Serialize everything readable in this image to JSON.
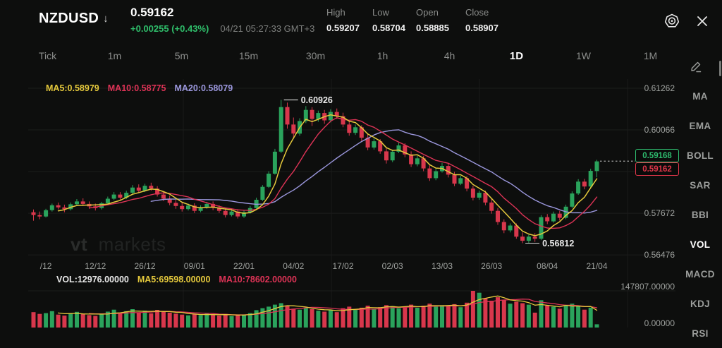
{
  "header": {
    "symbol": "NZDUSD",
    "symbol_arrow": "↓",
    "last_price": "0.59162",
    "change": "+0.00255 (+0.43%)",
    "timestamp": "04/21 05:27:33 GMT+3",
    "stats": [
      {
        "label": "High",
        "value": "0.59207"
      },
      {
        "label": "Low",
        "value": "0.58704"
      },
      {
        "label": "Open",
        "value": "0.58885"
      },
      {
        "label": "Close",
        "value": "0.58907"
      }
    ]
  },
  "icons": {
    "crosshair": "crosshair-target-icon",
    "close": "close-icon",
    "edit": "edit-pencil-icon"
  },
  "timeframes": {
    "items": [
      {
        "label": "Tick",
        "active": false
      },
      {
        "label": "1m",
        "active": false
      },
      {
        "label": "5m",
        "active": false
      },
      {
        "label": "15m",
        "active": false
      },
      {
        "label": "30m",
        "active": false
      },
      {
        "label": "1h",
        "active": false
      },
      {
        "label": "4h",
        "active": false
      },
      {
        "label": "1D",
        "active": true
      },
      {
        "label": "1W",
        "active": false
      },
      {
        "label": "1M",
        "active": false
      }
    ]
  },
  "price_legend": [
    {
      "label": "MA5:0.58979",
      "color": "#e5c93c"
    },
    {
      "label": "MA10:0.58775",
      "color": "#dd3356"
    },
    {
      "label": "MA20:0.58079",
      "color": "#9b97dd"
    }
  ],
  "volume_legend": [
    {
      "label": "VOL:12976.00000",
      "color": "#e9e9e9"
    },
    {
      "label": "MA5:69598.00000",
      "color": "#e5c93c"
    },
    {
      "label": "MA10:78602.00000",
      "color": "#dd3356"
    }
  ],
  "price_badges": {
    "upper": {
      "value": "0.59168",
      "color": "#2ebd6f"
    },
    "lower": {
      "value": "0.59162",
      "color": "#e0364a"
    }
  },
  "watermark": {
    "bold": "vt",
    "rest": "markets"
  },
  "sidebar": {
    "items": [
      {
        "label": "MA",
        "active": false
      },
      {
        "label": "EMA",
        "active": false
      },
      {
        "label": "BOLL",
        "active": false
      },
      {
        "label": "SAR",
        "active": false
      },
      {
        "label": "BBI",
        "active": false
      },
      {
        "label": "VOL",
        "active": true
      },
      {
        "label": "MACD",
        "active": false
      },
      {
        "label": "KDJ",
        "active": false
      },
      {
        "label": "RSI",
        "active": false
      }
    ]
  },
  "colors": {
    "up": "#2aa35c",
    "down": "#d8374c",
    "ma5": "#e5c93c",
    "ma10": "#dd3356",
    "ma20": "#9b97dd",
    "grid": "#1c1d1c",
    "grid_v": "#191a19",
    "axis_text": "#9da09d",
    "annotation": "#ececec",
    "dashed_line": "#9c9c9c"
  },
  "chart_data": {
    "type": "candlestick",
    "symbol": "NZDUSD",
    "interval": "1D",
    "x_axis": {
      "labels": [
        "/12",
        "12/12",
        "26/12",
        "09/01",
        "22/01",
        "04/02",
        "17/02",
        "02/03",
        "13/03",
        "26/03",
        "08/04",
        "21/04"
      ],
      "tick_indices": [
        2,
        10,
        18,
        26,
        34,
        42,
        50,
        58,
        66,
        74,
        83,
        91
      ]
    },
    "y_axis": {
      "labels": [
        {
          "value": 0.61262,
          "text": "0.61262"
        },
        {
          "value": 0.60066,
          "text": "0.60066"
        },
        {
          "value": 0.57672,
          "text": "0.57672"
        },
        {
          "value": 0.56476,
          "text": "0.56476"
        }
      ]
    },
    "volume_axis": {
      "labels": [
        {
          "value": 147807,
          "text": "147807.00000"
        },
        {
          "value": 0,
          "text": "0.00000"
        }
      ]
    },
    "annotations": [
      {
        "type": "high",
        "index": 40,
        "price": 0.60926,
        "text": "0.60926"
      },
      {
        "type": "low",
        "index": 79,
        "price": 0.56812,
        "text": "0.56812"
      }
    ],
    "current_price_line": {
      "price": 0.59168
    },
    "indicators": {
      "price_ma_periods": [
        5,
        10,
        20
      ],
      "volume_ma_periods": [
        5,
        10
      ]
    },
    "candles": [
      [
        0.577,
        0.5778,
        0.5746,
        0.5762
      ],
      [
        0.5762,
        0.5772,
        0.575,
        0.5758
      ],
      [
        0.5758,
        0.578,
        0.5755,
        0.5776
      ],
      [
        0.5776,
        0.5795,
        0.5772,
        0.579
      ],
      [
        0.579,
        0.5798,
        0.5778,
        0.5784
      ],
      [
        0.5784,
        0.5792,
        0.577,
        0.5779
      ],
      [
        0.5779,
        0.5798,
        0.5775,
        0.5793
      ],
      [
        0.5793,
        0.5808,
        0.5788,
        0.5801
      ],
      [
        0.5801,
        0.581,
        0.5788,
        0.5794
      ],
      [
        0.5794,
        0.5801,
        0.578,
        0.5787
      ],
      [
        0.5787,
        0.5795,
        0.5775,
        0.5782
      ],
      [
        0.5782,
        0.58,
        0.5778,
        0.5796
      ],
      [
        0.5796,
        0.5815,
        0.5792,
        0.5809
      ],
      [
        0.5809,
        0.5828,
        0.5805,
        0.5821
      ],
      [
        0.5821,
        0.5828,
        0.5806,
        0.5812
      ],
      [
        0.5812,
        0.5832,
        0.5808,
        0.5826
      ],
      [
        0.5826,
        0.5848,
        0.5822,
        0.5841
      ],
      [
        0.5841,
        0.585,
        0.5825,
        0.5832
      ],
      [
        0.5832,
        0.5852,
        0.5828,
        0.5846
      ],
      [
        0.5846,
        0.5855,
        0.5832,
        0.5838
      ],
      [
        0.5838,
        0.5845,
        0.5815,
        0.5821
      ],
      [
        0.5821,
        0.583,
        0.5802,
        0.5809
      ],
      [
        0.5809,
        0.5818,
        0.579,
        0.5797
      ],
      [
        0.5797,
        0.5806,
        0.578,
        0.5788
      ],
      [
        0.5788,
        0.58,
        0.5772,
        0.5779
      ],
      [
        0.5779,
        0.5795,
        0.5775,
        0.5789
      ],
      [
        0.5789,
        0.5796,
        0.5768,
        0.5774
      ],
      [
        0.5774,
        0.579,
        0.577,
        0.5784
      ],
      [
        0.5784,
        0.58,
        0.578,
        0.5794
      ],
      [
        0.5794,
        0.5801,
        0.5776,
        0.5783
      ],
      [
        0.5783,
        0.579,
        0.5768,
        0.5774
      ],
      [
        0.5774,
        0.5782,
        0.5755,
        0.5762
      ],
      [
        0.5762,
        0.5778,
        0.5758,
        0.5772
      ],
      [
        0.5772,
        0.5779,
        0.5752,
        0.5758
      ],
      [
        0.5758,
        0.5775,
        0.5754,
        0.577
      ],
      [
        0.577,
        0.5788,
        0.5766,
        0.5782
      ],
      [
        0.5782,
        0.5812,
        0.5778,
        0.5806
      ],
      [
        0.5806,
        0.5848,
        0.5802,
        0.5843
      ],
      [
        0.5843,
        0.5888,
        0.584,
        0.5881
      ],
      [
        0.5881,
        0.5952,
        0.5878,
        0.5944
      ],
      [
        0.5944,
        0.60926,
        0.594,
        0.6072
      ],
      [
        0.6072,
        0.6085,
        0.601,
        0.6022
      ],
      [
        0.6022,
        0.6042,
        0.5982,
        0.5996
      ],
      [
        0.5996,
        0.604,
        0.599,
        0.6032
      ],
      [
        0.6032,
        0.6075,
        0.6026,
        0.6064
      ],
      [
        0.6064,
        0.6072,
        0.6018,
        0.6038
      ],
      [
        0.6038,
        0.6062,
        0.603,
        0.6055
      ],
      [
        0.6055,
        0.6064,
        0.6024,
        0.6034
      ],
      [
        0.6034,
        0.6066,
        0.6028,
        0.6058
      ],
      [
        0.6058,
        0.6068,
        0.6038,
        0.6046
      ],
      [
        0.6046,
        0.6056,
        0.6014,
        0.6022
      ],
      [
        0.6022,
        0.6035,
        0.599,
        0.5998
      ],
      [
        0.5998,
        0.6022,
        0.5992,
        0.6014
      ],
      [
        0.6014,
        0.602,
        0.5975,
        0.5984
      ],
      [
        0.5984,
        0.5995,
        0.5948,
        0.5956
      ],
      [
        0.5956,
        0.5982,
        0.595,
        0.5974
      ],
      [
        0.5974,
        0.598,
        0.5938,
        0.5945
      ],
      [
        0.5945,
        0.5955,
        0.591,
        0.5919
      ],
      [
        0.5919,
        0.595,
        0.5914,
        0.5944
      ],
      [
        0.5944,
        0.597,
        0.594,
        0.5962
      ],
      [
        0.5962,
        0.5968,
        0.5928,
        0.5936
      ],
      [
        0.5936,
        0.5945,
        0.59,
        0.5908
      ],
      [
        0.5908,
        0.5932,
        0.5902,
        0.5925
      ],
      [
        0.5925,
        0.5932,
        0.5888,
        0.5896
      ],
      [
        0.5896,
        0.5905,
        0.586,
        0.5868
      ],
      [
        0.5868,
        0.5895,
        0.5862,
        0.5888
      ],
      [
        0.5888,
        0.5912,
        0.5884,
        0.5903
      ],
      [
        0.5903,
        0.591,
        0.587,
        0.5878
      ],
      [
        0.5878,
        0.5886,
        0.5845,
        0.5852
      ],
      [
        0.5852,
        0.5875,
        0.5848,
        0.5868
      ],
      [
        0.5868,
        0.5874,
        0.583,
        0.5838
      ],
      [
        0.5838,
        0.5846,
        0.5804,
        0.5812
      ],
      [
        0.5812,
        0.5832,
        0.5806,
        0.5826
      ],
      [
        0.5826,
        0.5832,
        0.579,
        0.5798
      ],
      [
        0.5798,
        0.5808,
        0.5766,
        0.5774
      ],
      [
        0.5774,
        0.5782,
        0.5734,
        0.5742
      ],
      [
        0.5742,
        0.575,
        0.571,
        0.5718
      ],
      [
        0.5718,
        0.5738,
        0.5712,
        0.5732
      ],
      [
        0.5732,
        0.5738,
        0.5694,
        0.57
      ],
      [
        0.57,
        0.5712,
        0.56812,
        0.5688
      ],
      [
        0.5688,
        0.5706,
        0.5682,
        0.57
      ],
      [
        0.57,
        0.571,
        0.5685,
        0.5694
      ],
      [
        0.5694,
        0.5762,
        0.569,
        0.5756
      ],
      [
        0.5756,
        0.5765,
        0.5736,
        0.5744
      ],
      [
        0.5744,
        0.5772,
        0.574,
        0.5766
      ],
      [
        0.5766,
        0.5774,
        0.5746,
        0.5754
      ],
      [
        0.5754,
        0.5792,
        0.575,
        0.5786
      ],
      [
        0.5786,
        0.583,
        0.5782,
        0.5824
      ],
      [
        0.5824,
        0.5865,
        0.582,
        0.5858
      ],
      [
        0.5858,
        0.5866,
        0.5836,
        0.5844
      ],
      [
        0.5844,
        0.5895,
        0.584,
        0.5889
      ],
      [
        0.58885,
        0.59207,
        0.58704,
        0.59162
      ]
    ],
    "volumes": [
      62000,
      55000,
      58000,
      66000,
      52000,
      48000,
      57000,
      63000,
      54000,
      50000,
      47000,
      56000,
      64000,
      72000,
      58000,
      66000,
      74000,
      60000,
      68000,
      57000,
      71000,
      65000,
      60000,
      56000,
      52000,
      49000,
      54000,
      50000,
      56000,
      51000,
      48000,
      55000,
      46000,
      52000,
      50000,
      58000,
      70000,
      78000,
      84000,
      92000,
      98000,
      88000,
      76000,
      72000,
      80000,
      74000,
      68000,
      64000,
      70000,
      62000,
      78000,
      84000,
      72000,
      80000,
      88000,
      76000,
      82000,
      90000,
      86000,
      78000,
      84000,
      92000,
      80000,
      88000,
      96000,
      84000,
      90000,
      86000,
      94000,
      82000,
      100000,
      147807,
      140000,
      118000,
      108000,
      122000,
      112000,
      96000,
      104000,
      98000,
      92000,
      60000,
      110000,
      88000,
      84000,
      76000,
      90000,
      96000,
      86000,
      72000,
      80000,
      12976
    ]
  }
}
